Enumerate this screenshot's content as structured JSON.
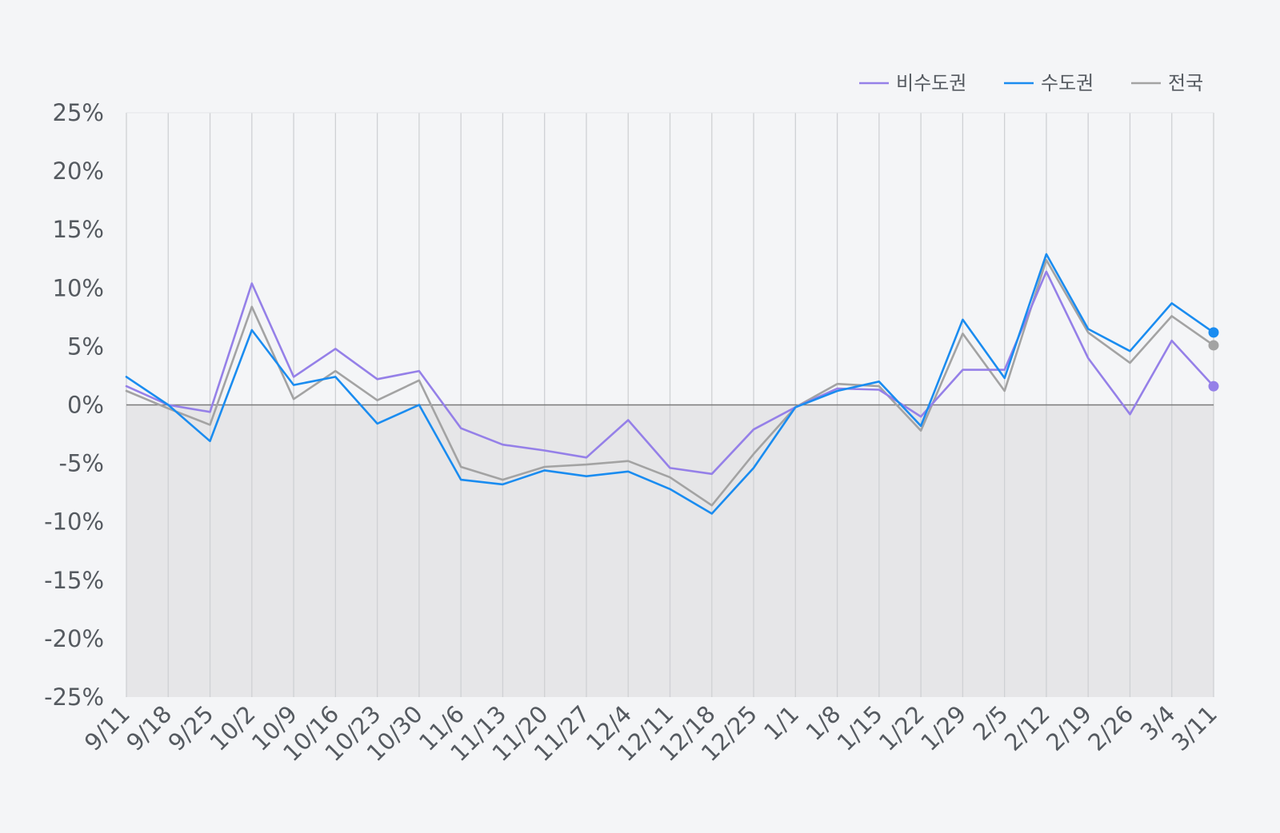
{
  "chart_data": {
    "type": "line",
    "title": "",
    "xlabel": "",
    "ylabel": "",
    "ylim": [
      -25,
      25
    ],
    "y_ticks": [
      25,
      20,
      15,
      10,
      5,
      0,
      -5,
      -10,
      -15,
      -20,
      -25
    ],
    "y_tick_labels": [
      "25%",
      "20%",
      "15%",
      "10%",
      "5%",
      "0%",
      "-5%",
      "-10%",
      "-15%",
      "-20%",
      "-25%"
    ],
    "grid": "vertical",
    "legend_position": "top-right",
    "negative_region_shaded": true,
    "categories": [
      "9/11",
      "9/18",
      "9/25",
      "10/2",
      "10/9",
      "10/16",
      "10/23",
      "10/30",
      "11/6",
      "11/13",
      "11/20",
      "11/27",
      "12/4",
      "12/11",
      "12/18",
      "12/25",
      "1/1",
      "1/8",
      "1/15",
      "1/22",
      "1/29",
      "2/5",
      "2/12",
      "2/19",
      "2/26",
      "3/4",
      "3/11"
    ],
    "series": [
      {
        "name": "비수도권",
        "color": "#9580e8",
        "values": [
          1.6,
          0.0,
          -0.6,
          10.4,
          2.4,
          4.8,
          2.2,
          2.9,
          -2.0,
          -3.4,
          -3.9,
          -4.5,
          -1.3,
          -5.4,
          -5.9,
          -2.1,
          -0.2,
          1.4,
          1.3,
          -1.0,
          3.0,
          3.0,
          11.4,
          4.0,
          -0.8,
          5.5,
          1.6
        ]
      },
      {
        "name": "수도권",
        "color": "#1a8cf0",
        "values": [
          2.4,
          0.0,
          -3.1,
          6.4,
          1.7,
          2.4,
          -1.6,
          0.0,
          -6.4,
          -6.8,
          -5.6,
          -6.1,
          -5.7,
          -7.2,
          -9.3,
          -5.4,
          -0.2,
          1.2,
          2.0,
          -1.8,
          7.3,
          2.3,
          12.9,
          6.5,
          4.6,
          8.7,
          6.2
        ]
      },
      {
        "name": "전국",
        "color": "#a3a3a3",
        "values": [
          1.2,
          -0.3,
          -1.7,
          8.4,
          0.5,
          2.9,
          0.4,
          2.1,
          -5.3,
          -6.4,
          -5.3,
          -5.1,
          -4.8,
          -6.2,
          -8.6,
          -4.2,
          -0.2,
          1.8,
          1.6,
          -2.2,
          6.1,
          1.2,
          12.4,
          6.2,
          3.6,
          7.6,
          5.1
        ]
      }
    ]
  }
}
